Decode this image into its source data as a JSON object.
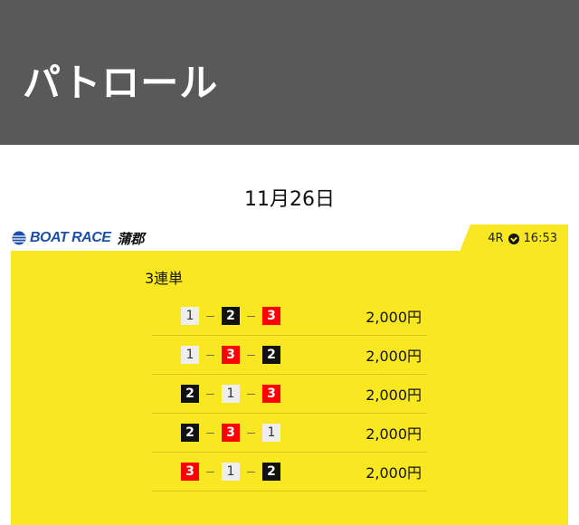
{
  "header": {
    "title": "パトロール"
  },
  "date": "11月26日",
  "logo": {
    "brand": "BOAT RACE",
    "venue": "蒲郡"
  },
  "race": {
    "number": "4R",
    "time": "16:53",
    "icon": "clock-icon"
  },
  "bet": {
    "type": "3連単",
    "rows": [
      {
        "combo": [
          "1",
          "2",
          "3"
        ],
        "price": "2,000円"
      },
      {
        "combo": [
          "1",
          "3",
          "2"
        ],
        "price": "2,000円"
      },
      {
        "combo": [
          "2",
          "1",
          "3"
        ],
        "price": "2,000円"
      },
      {
        "combo": [
          "2",
          "3",
          "1"
        ],
        "price": "2,000円"
      },
      {
        "combo": [
          "3",
          "1",
          "2"
        ],
        "price": "2,000円"
      }
    ],
    "separator": "－"
  },
  "colors": {
    "header": "#595959",
    "panel": "#f9e721",
    "boat1": "#eeeeee",
    "boat2": "#111111",
    "boat3": "#ff0000"
  }
}
